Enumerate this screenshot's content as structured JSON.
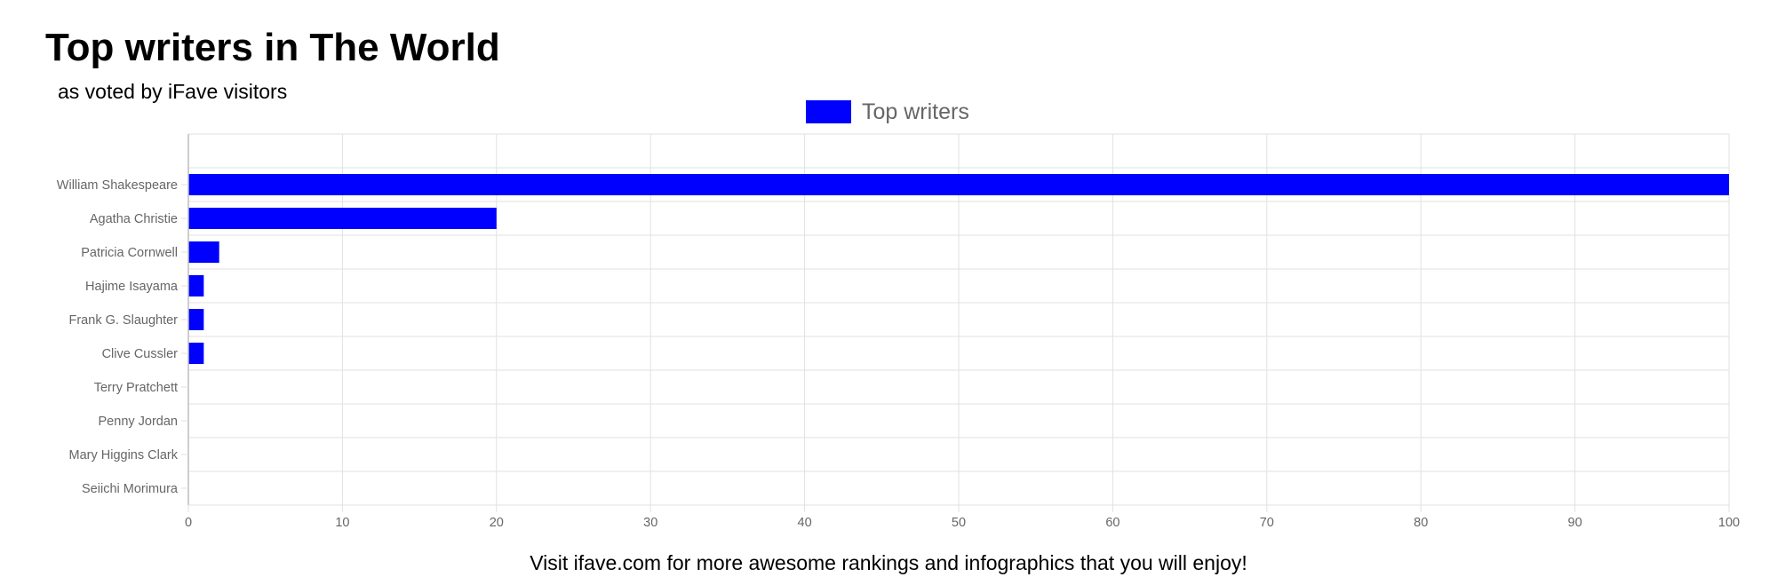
{
  "header": {
    "title": "Top writers in The World",
    "subtitle": "as voted by iFave visitors"
  },
  "footer": {
    "text": "Visit ifave.com for more awesome rankings and infographics that you will enjoy!"
  },
  "colors": {
    "bar": "#0000ff",
    "grid": "#e1e1e1",
    "axis": "#bdbdbd",
    "tick_text": "#666666"
  },
  "chart_data": {
    "type": "bar",
    "orientation": "horizontal",
    "title": "",
    "xlabel": "",
    "ylabel": "",
    "legend": {
      "position": "top"
    },
    "grid": true,
    "categories": [
      "William Shakespeare",
      "Agatha Christie",
      "Patricia Cornwell",
      "Hajime Isayama",
      "Frank G. Slaughter",
      "Clive Cussler",
      "Terry Pratchett",
      "Penny Jordan",
      "Mary Higgins Clark",
      "Seiichi Morimura"
    ],
    "series": [
      {
        "name": "Top writers",
        "values": [
          100,
          20,
          2,
          1,
          1,
          1,
          0,
          0,
          0,
          0
        ]
      }
    ],
    "xlim": [
      0,
      100
    ],
    "xticks": [
      0,
      10,
      20,
      30,
      40,
      50,
      60,
      70,
      80,
      90,
      100
    ]
  }
}
